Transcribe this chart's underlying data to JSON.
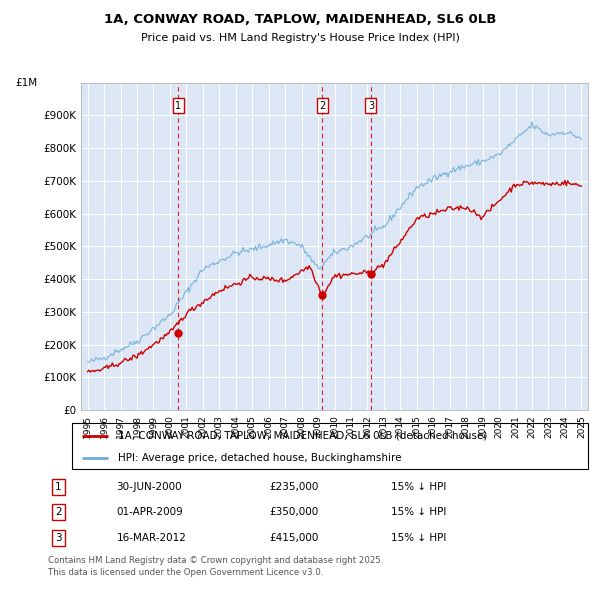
{
  "title": "1A, CONWAY ROAD, TAPLOW, MAIDENHEAD, SL6 0LB",
  "subtitle": "Price paid vs. HM Land Registry's House Price Index (HPI)",
  "background_color": "#dce6f5",
  "plot_bg_color": "#dce6f5",
  "ylim": [
    0,
    1000000
  ],
  "yticks": [
    0,
    100000,
    200000,
    300000,
    400000,
    500000,
    600000,
    700000,
    800000,
    900000
  ],
  "ytick_labels": [
    "£0",
    "£100K",
    "£200K",
    "£300K",
    "£400K",
    "£500K",
    "£600K",
    "£700K",
    "£800K",
    "£900K"
  ],
  "top_label": "£1M",
  "hpi_color": "#6baed6",
  "price_color": "#cc0000",
  "transaction_color": "#cc0000",
  "transactions": [
    {
      "label": "1",
      "date_num": 2000.5,
      "price": 235000
    },
    {
      "label": "2",
      "date_num": 2009.25,
      "price": 350000
    },
    {
      "label": "3",
      "date_num": 2012.21,
      "price": 415000
    }
  ],
  "transaction_details": [
    {
      "num": "1",
      "date": "30-JUN-2000",
      "price": "£235,000",
      "note": "15% ↓ HPI"
    },
    {
      "num": "2",
      "date": "01-APR-2009",
      "price": "£350,000",
      "note": "15% ↓ HPI"
    },
    {
      "num": "3",
      "date": "16-MAR-2012",
      "price": "£415,000",
      "note": "15% ↓ HPI"
    }
  ],
  "legend_entries": [
    "1A, CONWAY ROAD, TAPLOW, MAIDENHEAD, SL6 0LB (detached house)",
    "HPI: Average price, detached house, Buckinghamshire"
  ],
  "footer": "Contains HM Land Registry data © Crown copyright and database right 2025.\nThis data is licensed under the Open Government Licence v3.0.",
  "start_year": 1995,
  "end_year": 2025
}
